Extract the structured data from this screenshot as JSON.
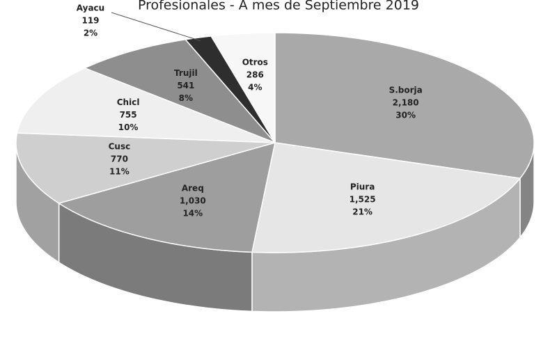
{
  "chart_data": {
    "type": "pie",
    "title": "Profesionales - A mes de Septiembre 2019",
    "categories": [
      "S.borja",
      "Piura",
      "Areq",
      "Cusc",
      "Chicl",
      "Trujil",
      "Ayacu",
      "Otros"
    ],
    "values": [
      2180,
      1525,
      1030,
      770,
      755,
      541,
      119,
      286
    ],
    "value_labels": [
      "2,180",
      "1,525",
      "1,030",
      "770",
      "755",
      "541",
      "119",
      "286"
    ],
    "percentage_labels": [
      "30%",
      "21%",
      "14%",
      "11%",
      "10%",
      "8%",
      "2%",
      "4%"
    ],
    "colors": [
      "#a9a9a9",
      "#e6e6e6",
      "#9e9e9e",
      "#cfcfcf",
      "#efefef",
      "#8e8e8e",
      "#2e2e2e",
      "#f7f7f7"
    ]
  }
}
